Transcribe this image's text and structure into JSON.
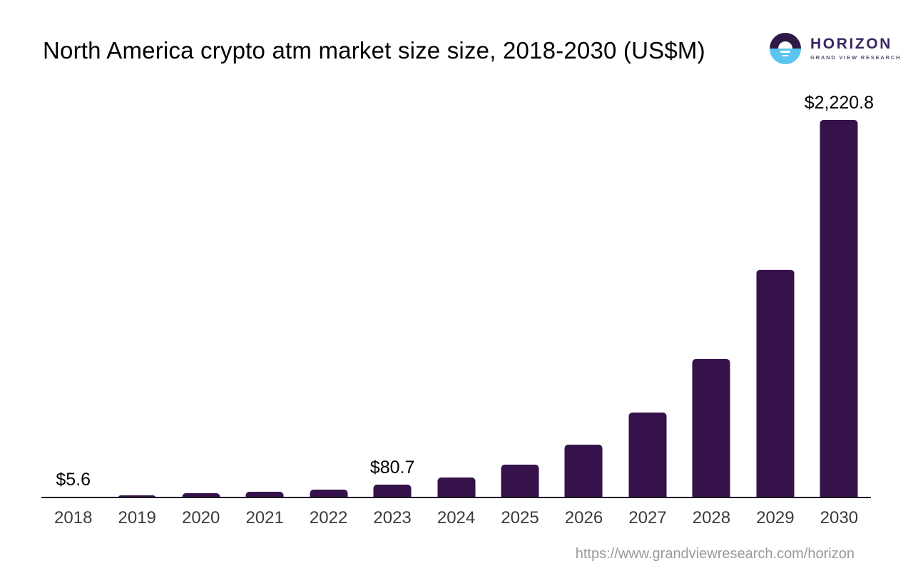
{
  "header": {
    "title": "North America crypto atm market size size, 2018-2030 (US$M)"
  },
  "logo": {
    "name": "HORIZON",
    "subtitle": "GRAND VIEW RESEARCH",
    "colors": {
      "circle_top": "#2e1a47",
      "circle_bottom": "#5bc4ef",
      "name_text": "#3b2563",
      "subtitle_text": "#55516b"
    }
  },
  "footer": {
    "url": "https://www.grandviewresearch.com/horizon"
  },
  "chart_data": {
    "type": "bar",
    "title": "North America crypto atm market size size, 2018-2030 (US$M)",
    "unit": "US$M",
    "categories": [
      "2018",
      "2019",
      "2020",
      "2021",
      "2022",
      "2023",
      "2024",
      "2025",
      "2026",
      "2027",
      "2028",
      "2029",
      "2030"
    ],
    "values": [
      5.6,
      16.8,
      28.1,
      37.7,
      51.5,
      80.7,
      121.5,
      196.9,
      314.3,
      502.8,
      817.1,
      1340.8,
      2220.8
    ],
    "data_labels": [
      {
        "index": 0,
        "text": "$5.6"
      },
      {
        "index": 5,
        "text": "$80.7"
      },
      {
        "index": 12,
        "text": "$2,220.8"
      }
    ],
    "xlabel": "",
    "ylabel": "",
    "ylim": [
      0,
      2220.8
    ],
    "grid": false,
    "legend": false,
    "y_axis_shown": false,
    "bar_color": "#35124a",
    "axis_color": "#1c1c1c",
    "tick_label_color": "#3c3c3c",
    "data_label_color": "#000000"
  }
}
